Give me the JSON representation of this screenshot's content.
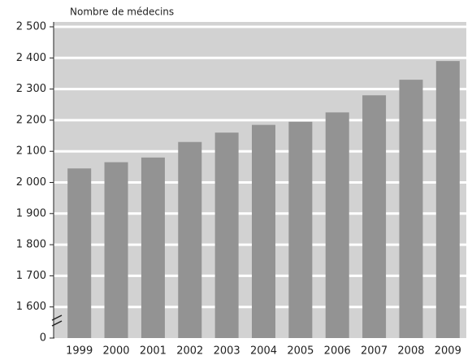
{
  "chart_data": {
    "type": "bar",
    "y_label": "Nombre de médecins",
    "categories": [
      "1999",
      "2000",
      "2001",
      "2002",
      "2003",
      "2004",
      "2005",
      "2006",
      "2007",
      "2008",
      "2009"
    ],
    "values": [
      2045,
      2065,
      2080,
      2130,
      2160,
      2185,
      2195,
      2225,
      2280,
      2330,
      2390
    ],
    "color": "#939393",
    "ylim": [
      0,
      2500
    ],
    "yticks": [
      0,
      {
        "value": 1600,
        "label": "1 600"
      },
      {
        "value": 1700,
        "label": "1 700"
      },
      {
        "value": 1800,
        "label": "1 800"
      },
      {
        "value": 1900,
        "label": "1 900"
      },
      {
        "value": 2000,
        "label": "2 000"
      },
      {
        "value": 2100,
        "label": "2 100"
      },
      {
        "value": 2200,
        "label": "2 200"
      },
      {
        "value": 2300,
        "label": "2 300"
      },
      {
        "value": 2400,
        "label": "2 400"
      },
      {
        "value": 2500,
        "label": "2 500"
      }
    ],
    "axis_break": true,
    "grid": true
  }
}
